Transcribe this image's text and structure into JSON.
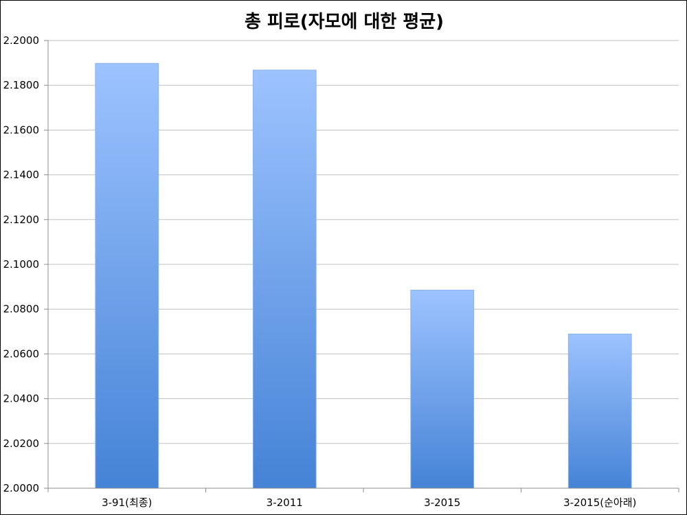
{
  "chart_data": {
    "type": "bar",
    "title": "총 피로(자모에 대한 평균)",
    "categories": [
      "3-91(최종)",
      "3-2011",
      "3-2015",
      "3-2015(순아래)"
    ],
    "values": [
      2.1898,
      2.1868,
      2.0885,
      2.0689
    ],
    "xlabel": "",
    "ylabel": "",
    "ylim": [
      2.0,
      2.2
    ],
    "yticks": [
      "2.0000",
      "2.0200",
      "2.0400",
      "2.0600",
      "2.0800",
      "2.1000",
      "2.1200",
      "2.1400",
      "2.1600",
      "2.1800",
      "2.2000"
    ],
    "grid": true,
    "legend": "none",
    "bar_gradient": {
      "top": "#9DC3FF",
      "bottom": "#4583D6"
    },
    "bar_edge": "#8AB2EE",
    "gridline_color": "#BFBFBF",
    "axis_color": "#8C8C8C"
  }
}
